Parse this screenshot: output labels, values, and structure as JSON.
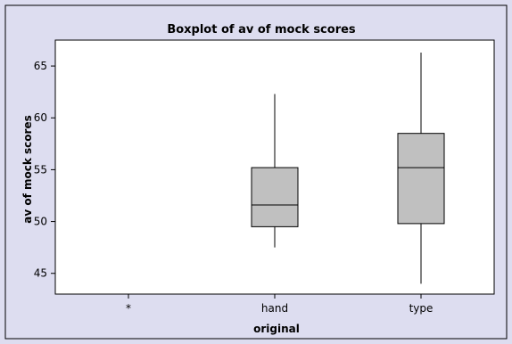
{
  "chart_data": {
    "type": "boxplot",
    "title": "Boxplot of av of mock scores",
    "xlabel": "original",
    "ylabel": "av of mock scores",
    "ylim": [
      43.0,
      67.5
    ],
    "yticks": [
      45,
      50,
      55,
      60,
      65
    ],
    "categories": [
      "*",
      "hand",
      "type"
    ],
    "boxes": [
      {
        "category": "*",
        "present": false
      },
      {
        "category": "hand",
        "present": true,
        "min": 47.5,
        "q1": 49.5,
        "median": 51.6,
        "q3": 55.2,
        "max": 62.3
      },
      {
        "category": "type",
        "present": true,
        "min": 44.0,
        "q1": 49.8,
        "median": 55.2,
        "q3": 58.5,
        "max": 66.3
      }
    ],
    "grid": false,
    "colors": {
      "outer_bg": "#ddddf0",
      "plot_bg": "#ffffff",
      "box_fill": "#c0c0c0",
      "stroke": "#000000"
    }
  }
}
